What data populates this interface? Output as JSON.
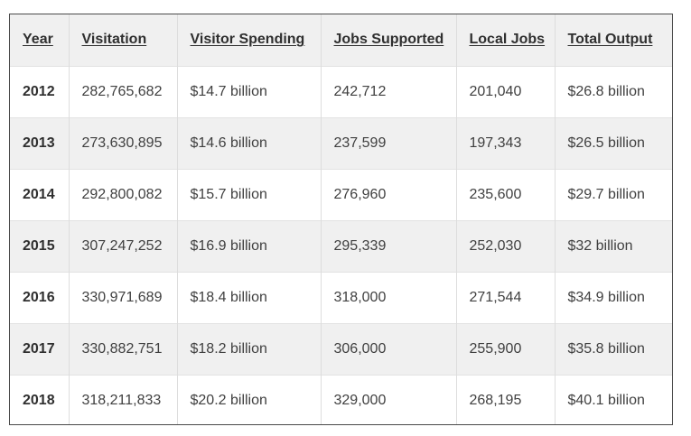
{
  "table": {
    "headers": [
      "Year",
      "Visitation",
      "Visitor Spending",
      "Jobs Supported",
      "Local Jobs",
      "Total Output"
    ],
    "rows": [
      [
        "2012",
        "282,765,682",
        "$14.7 billion",
        "242,712",
        "201,040",
        "$26.8 billion"
      ],
      [
        "2013",
        "273,630,895",
        "$14.6 billion",
        "237,599",
        "197,343",
        "$26.5 billion"
      ],
      [
        "2014",
        "292,800,082",
        "$15.7 billion",
        "276,960",
        "235,600",
        "$29.7 billion"
      ],
      [
        "2015",
        "307,247,252",
        "$16.9 billion",
        "295,339",
        "252,030",
        "$32 billion"
      ],
      [
        "2016",
        "330,971,689",
        "$18.4 billion",
        "318,000",
        "271,544",
        "$34.9 billion"
      ],
      [
        "2017",
        "330,882,751",
        "$18.2 billion",
        "306,000",
        "255,900",
        "$35.8 billion"
      ],
      [
        "2018",
        "318,211,833",
        "$20.2 billion",
        "329,000",
        "268,195",
        "$40.1 billion"
      ]
    ]
  },
  "colors": {
    "header_bg": "#f0f0f0",
    "stripe_bg": "#f0f0f0",
    "row_bg": "#ffffff",
    "border": "#4a4a4a"
  }
}
